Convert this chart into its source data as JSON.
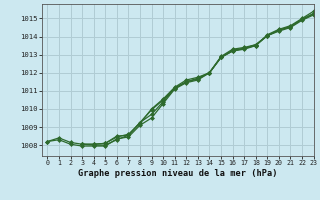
{
  "title": "Graphe pression niveau de la mer (hPa)",
  "background_color": "#cce8f0",
  "plot_bg_color": "#cce8f0",
  "grid_color": "#b0ccd4",
  "line_color": "#2d6a2d",
  "xlim": [
    -0.5,
    23
  ],
  "ylim": [
    1007.4,
    1015.8
  ],
  "yticks": [
    1008,
    1009,
    1010,
    1011,
    1012,
    1013,
    1014,
    1015
  ],
  "xticks": [
    0,
    1,
    2,
    3,
    4,
    5,
    6,
    7,
    8,
    9,
    10,
    11,
    12,
    13,
    14,
    15,
    16,
    17,
    18,
    19,
    20,
    21,
    22,
    23
  ],
  "line1_x": [
    0,
    1,
    2,
    3,
    4,
    5,
    6,
    7,
    8,
    9,
    10,
    11,
    12,
    13,
    14,
    15,
    16,
    17,
    18,
    19,
    20,
    21,
    22,
    23
  ],
  "line1": [
    1008.2,
    1008.4,
    1008.15,
    1008.05,
    1008.05,
    1008.1,
    1008.5,
    1008.55,
    1009.25,
    1009.7,
    1010.4,
    1011.15,
    1011.5,
    1011.65,
    1012.0,
    1012.85,
    1013.2,
    1013.3,
    1013.5,
    1014.1,
    1014.4,
    1014.6,
    1015.0,
    1015.4
  ],
  "line2_x": [
    0,
    1,
    2,
    3,
    4,
    5,
    6,
    7,
    8,
    9,
    10,
    11,
    12,
    13,
    14,
    15,
    16,
    17,
    18,
    19,
    20,
    21,
    22,
    23
  ],
  "line2": [
    1008.2,
    1008.3,
    1008.05,
    1007.95,
    1007.95,
    1007.95,
    1008.35,
    1008.45,
    1009.1,
    1009.5,
    1010.3,
    1011.1,
    1011.45,
    1011.6,
    1012.0,
    1012.85,
    1013.2,
    1013.35,
    1013.5,
    1014.05,
    1014.35,
    1014.55,
    1014.95,
    1015.25
  ],
  "line3_x": [
    3,
    4,
    5,
    6,
    7,
    8,
    9,
    10,
    11,
    12,
    13,
    14,
    15,
    16,
    17,
    18,
    19,
    20,
    21,
    22,
    23
  ],
  "line3": [
    1008.05,
    1008.0,
    1008.0,
    1008.3,
    1008.55,
    1009.25,
    1009.95,
    1010.5,
    1011.15,
    1011.5,
    1011.7,
    1012.0,
    1012.85,
    1013.25,
    1013.35,
    1013.55,
    1014.05,
    1014.3,
    1014.5,
    1014.9,
    1015.2
  ],
  "line4_x": [
    3,
    4,
    5,
    6,
    7,
    8,
    9,
    10,
    11,
    12,
    13,
    14,
    15,
    16,
    17,
    18,
    19,
    20,
    21,
    22,
    23
  ],
  "line4": [
    1008.05,
    1008.05,
    1008.1,
    1008.45,
    1008.6,
    1009.2,
    1010.0,
    1010.55,
    1011.2,
    1011.6,
    1011.75,
    1012.0,
    1012.9,
    1013.3,
    1013.4,
    1013.55,
    1014.05,
    1014.35,
    1014.55,
    1014.95,
    1015.28
  ]
}
